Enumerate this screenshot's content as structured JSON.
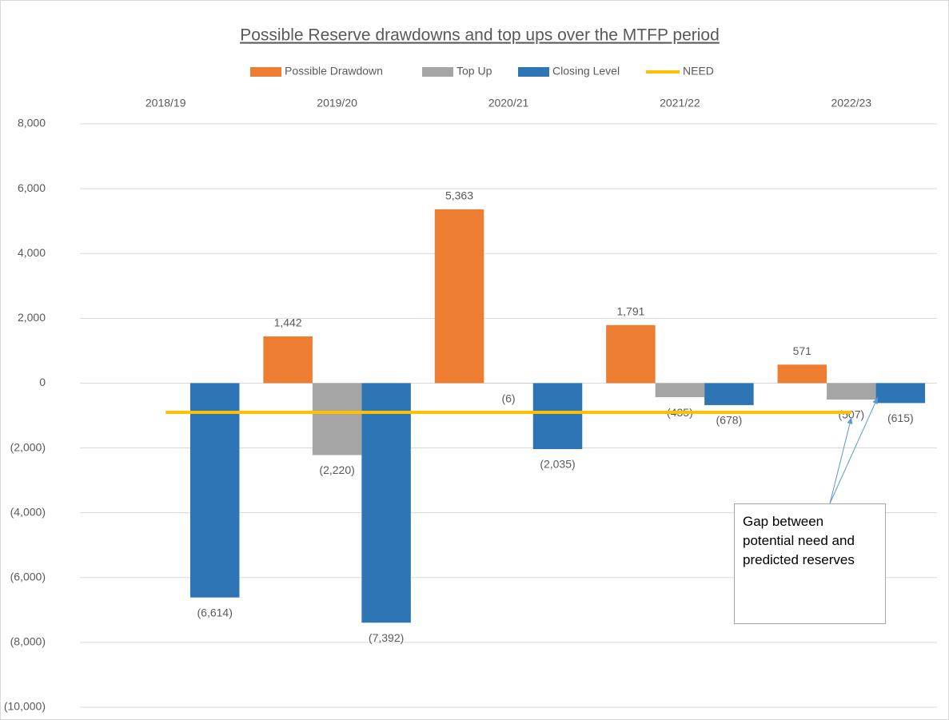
{
  "chart_data": {
    "type": "bar",
    "title": "Possible Reserve drawdowns and top ups over the MTFP period",
    "categories": [
      "2018/19",
      "2019/20",
      "2020/21",
      "2021/22",
      "2022/23"
    ],
    "series": [
      {
        "name": "Possible Drawdown",
        "color": "#ED7D31",
        "values": [
          null,
          1442,
          5363,
          1791,
          571
        ],
        "value_labels": [
          null,
          "1,442",
          "5,363",
          "1,791",
          "571"
        ]
      },
      {
        "name": "Top Up",
        "color": "#A5A5A5",
        "values": [
          null,
          -2220,
          -6,
          -435,
          -507
        ],
        "value_labels": [
          null,
          "(2,220)",
          "(6)",
          "(435)",
          "(507)"
        ]
      },
      {
        "name": "Closing Level",
        "color": "#2E75B6",
        "values": [
          -6614,
          -7392,
          -2035,
          -678,
          -615
        ],
        "value_labels": [
          "(6,614)",
          "(7,392)",
          "(2,035)",
          "(678)",
          "(615)"
        ]
      },
      {
        "name": "NEED",
        "type": "line",
        "color": "#FFC000",
        "values": [
          -900,
          -900,
          -900,
          -900,
          -900
        ]
      }
    ],
    "ylim": [
      -10000,
      8000
    ],
    "yticks": [
      {
        "value": -10000,
        "label": "(10,000)"
      },
      {
        "value": -8000,
        "label": "(8,000)"
      },
      {
        "value": -6000,
        "label": "(6,000)"
      },
      {
        "value": -4000,
        "label": "(4,000)"
      },
      {
        "value": -2000,
        "label": "(2,000)"
      },
      0,
      {
        "value": 2000,
        "label": "2,000"
      },
      {
        "value": 4000,
        "label": "4,000"
      },
      {
        "value": 6000,
        "label": "6,000"
      },
      {
        "value": 8000,
        "label": "8,000"
      }
    ],
    "grid": true,
    "legend": "top",
    "annotation": "Gap between potential need and predicted reserves"
  }
}
